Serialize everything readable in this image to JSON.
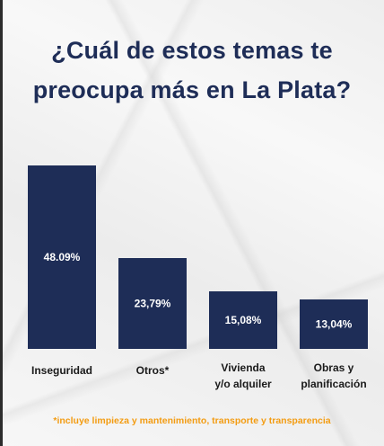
{
  "chart_data": {
    "type": "bar",
    "title_lines": [
      "¿Cuál de estos temas te",
      "preocupa más en La Plata?"
    ],
    "categories": [
      [
        "Inseguridad"
      ],
      [
        "Otros*"
      ],
      [
        "Vivienda",
        "y/o alquiler"
      ],
      [
        "Obras y",
        "planificación"
      ]
    ],
    "values": [
      48.09,
      23.79,
      15.08,
      13.04
    ],
    "value_labels": [
      "48.09%",
      "23,79%",
      "15,08%",
      "13,04%"
    ],
    "ylim": [
      0,
      48.09
    ],
    "grid": false,
    "legend": "none",
    "footnote": "*incluye limpieza y mantenimiento, transporte y transparencia",
    "colors": {
      "bar": "#1e2d57",
      "title": "#1e2d57",
      "footnote": "#f39c12",
      "label": "#1a1a1a"
    }
  }
}
